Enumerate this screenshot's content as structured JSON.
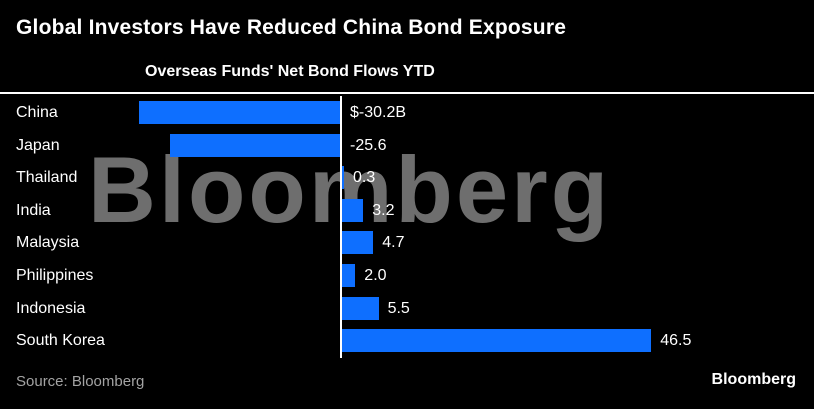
{
  "title": "Global Investors Have Reduced China Bond Exposure",
  "subtitle": "Overseas Funds' Net Bond Flows YTD",
  "watermark": "Bloomberg",
  "footer": {
    "source": "Source: Bloomberg",
    "brand": "Bloomberg"
  },
  "colors": {
    "background": "#000000",
    "bar": "#0e6fff",
    "text": "#ffffff",
    "muted_text": "#a3a3a3",
    "watermark": "#6e6e6e",
    "axis_line": "#ffffff"
  },
  "chart_data": {
    "type": "bar",
    "orientation": "horizontal",
    "title": "Overseas Funds' Net Bond Flows YTD",
    "categories": [
      "China",
      "Japan",
      "Thailand",
      "India",
      "Malaysia",
      "Philippines",
      "Indonesia",
      "South Korea"
    ],
    "values": [
      -30.2,
      -25.6,
      0.3,
      3.2,
      4.7,
      2.0,
      5.5,
      46.5
    ],
    "value_labels": [
      "$-30.2B",
      "-25.6",
      "0.3",
      "3.2",
      "4.7",
      "2.0",
      "5.5",
      "46.5"
    ],
    "xlim": [
      -32,
      50
    ],
    "baseline": 0,
    "grid": false,
    "legend": "none"
  }
}
